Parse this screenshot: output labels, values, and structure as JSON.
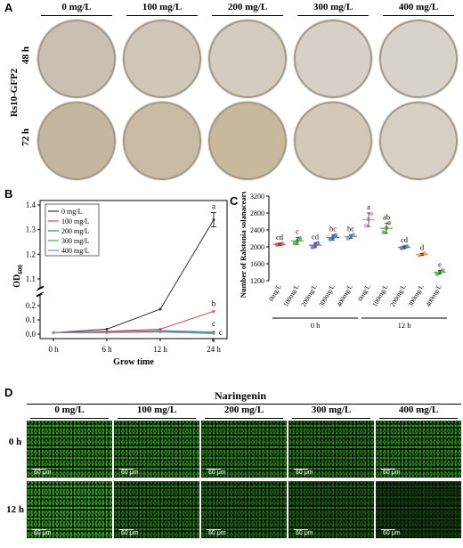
{
  "panelA": {
    "letter": "A",
    "strain_label": "Rs10-GFP2",
    "concentrations": [
      "0 mg/L",
      "100 mg/L",
      "200 mg/L",
      "300 mg/L",
      "400 mg/L"
    ],
    "rows": [
      "48 h",
      "72 h"
    ]
  },
  "panelB": {
    "letter": "B",
    "chart_data": {
      "type": "line",
      "xlabel": "Grow time",
      "ylabel_main": "OD",
      "ylabel_sub": "600",
      "categories": [
        "0 h",
        "6 h",
        "12 h",
        "24 h"
      ],
      "yticks": [
        "0.0",
        "0.1",
        "0.2",
        "1.1",
        "1.2",
        "1.3",
        "1.4"
      ],
      "broken_axis": true,
      "series": [
        {
          "name": "0 mg/L",
          "color": "#333333",
          "values": [
            0.01,
            0.035,
            0.175,
            1.34
          ],
          "letter": "a"
        },
        {
          "name": "100 mg/L",
          "color": "#e0494a",
          "values": [
            0.01,
            0.02,
            0.035,
            0.16
          ],
          "letter": "b"
        },
        {
          "name": "200 mg/L",
          "color": "#3b6fb6",
          "values": [
            0.01,
            0.015,
            0.025,
            0.015
          ],
          "letter": "c"
        },
        {
          "name": "300 mg/L",
          "color": "#4caf50",
          "values": [
            0.01,
            0.012,
            0.02,
            0.008
          ],
          "letter": "c"
        },
        {
          "name": "400 mg/L",
          "color": "#9b7fb0",
          "values": [
            0.01,
            0.01,
            0.015,
            0.003
          ],
          "letter": "c"
        }
      ]
    }
  },
  "panelC": {
    "letter": "C",
    "chart_data": {
      "type": "scatter",
      "ylabel": "Number of Ralstonia solanacearum",
      "ylim": [
        1200,
        3200
      ],
      "yticks": [
        "1200",
        "1600",
        "2000",
        "2400",
        "2800",
        "3200"
      ],
      "categories": [
        "0mg/L",
        "100mg/L",
        "200mg/L",
        "300mg/L",
        "400mg/L",
        "0mg/L",
        "100mg/L",
        "200mg/L",
        "300mg/L",
        "400mg/L"
      ],
      "group_labels": [
        "0 h",
        "12 h"
      ],
      "means": [
        2060,
        2140,
        2040,
        2220,
        2240,
        2640,
        2440,
        1990,
        1820,
        1400
      ],
      "errors": [
        20,
        80,
        60,
        60,
        40,
        160,
        120,
        30,
        20,
        40
      ],
      "letters": [
        "cd",
        "c",
        "cd",
        "bc",
        "bc",
        "a",
        "ab",
        "cd",
        "d",
        "e"
      ],
      "colors": [
        "#e05a4f",
        "#4caf50",
        "#7b68c8",
        "#4a7ec8",
        "#7a9bc8",
        "#e59ad8",
        "#6aa84f",
        "#4a7ec8",
        "#e59a6a",
        "#4caf50"
      ],
      "points": [
        [
          2050,
          2060,
          2070
        ],
        [
          2080,
          2140,
          2200
        ],
        [
          1990,
          2040,
          2090
        ],
        [
          2180,
          2220,
          2270
        ],
        [
          2200,
          2240,
          2280
        ],
        [
          2500,
          2650,
          2780
        ],
        [
          2340,
          2440,
          2560
        ],
        [
          1970,
          1990,
          2010
        ],
        [
          1800,
          1820,
          1840
        ],
        [
          1360,
          1400,
          1440
        ]
      ]
    }
  },
  "panelD": {
    "letter": "D",
    "title": "Naringenin",
    "concentrations": [
      "0 mg/L",
      "100 mg/L",
      "200 mg/L",
      "300 mg/L",
      "400 mg/L"
    ],
    "rows": [
      "0 h",
      "12 h"
    ],
    "scale": "60 μm"
  }
}
